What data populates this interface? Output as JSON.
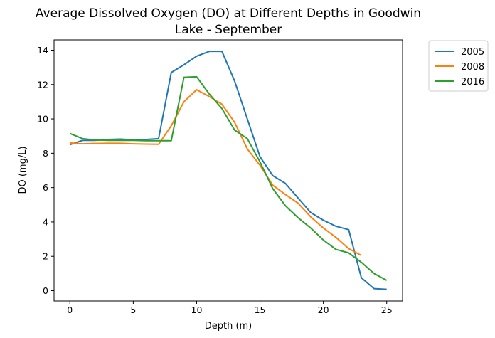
{
  "chart_data": {
    "type": "line",
    "title_lines": [
      "Average Dissolved Oxygen (DO) at Different Depths in Goodwin",
      "Lake - September"
    ],
    "xlabel": "Depth (m)",
    "ylabel": "DO (mg/L)",
    "xlim": [
      -1.25,
      26.25
    ],
    "ylim": [
      -0.6,
      14.6
    ],
    "xticks": [
      0,
      5,
      10,
      15,
      20,
      25
    ],
    "yticks": [
      0,
      2,
      4,
      6,
      8,
      10,
      12,
      14
    ],
    "grid": false,
    "legend_position": "outside-top-right",
    "series": [
      {
        "name": "2005",
        "color": "#1f77b4",
        "x": [
          0,
          1,
          2,
          3,
          4,
          5,
          6,
          7,
          8,
          9,
          10,
          11,
          12,
          13,
          14,
          15,
          16,
          17,
          18,
          19,
          20,
          21,
          22,
          23,
          24,
          25
        ],
        "y": [
          8.5,
          8.75,
          8.75,
          8.8,
          8.82,
          8.78,
          8.8,
          8.85,
          12.7,
          13.15,
          13.65,
          13.93,
          13.93,
          12.2,
          10.0,
          7.8,
          6.7,
          6.25,
          5.4,
          4.55,
          4.1,
          3.75,
          3.55,
          0.75,
          0.12,
          0.08
        ]
      },
      {
        "name": "2008",
        "color": "#ff7f0e",
        "x": [
          0,
          1,
          2,
          3,
          4,
          5,
          6,
          7,
          8,
          9,
          10,
          11,
          12,
          13,
          14,
          15,
          16,
          17,
          18,
          19,
          20,
          21,
          22,
          23
        ],
        "y": [
          8.6,
          8.55,
          8.57,
          8.58,
          8.58,
          8.55,
          8.53,
          8.52,
          9.6,
          11.0,
          11.7,
          11.3,
          10.85,
          9.8,
          8.25,
          7.3,
          6.15,
          5.6,
          5.1,
          4.3,
          3.65,
          3.1,
          2.45,
          2.05
        ]
      },
      {
        "name": "2016",
        "color": "#2ca02c",
        "x": [
          0,
          1,
          2,
          3,
          4,
          5,
          6,
          7,
          8,
          9,
          10,
          11,
          12,
          13,
          14,
          15,
          16,
          17,
          18,
          19,
          20,
          21,
          22,
          23,
          24,
          25
        ],
        "y": [
          9.15,
          8.85,
          8.77,
          8.75,
          8.75,
          8.75,
          8.73,
          8.73,
          8.73,
          12.42,
          12.45,
          11.45,
          10.6,
          9.35,
          8.85,
          7.5,
          5.95,
          4.95,
          4.25,
          3.65,
          2.95,
          2.4,
          2.2,
          1.65,
          1.0,
          0.6
        ]
      }
    ]
  }
}
